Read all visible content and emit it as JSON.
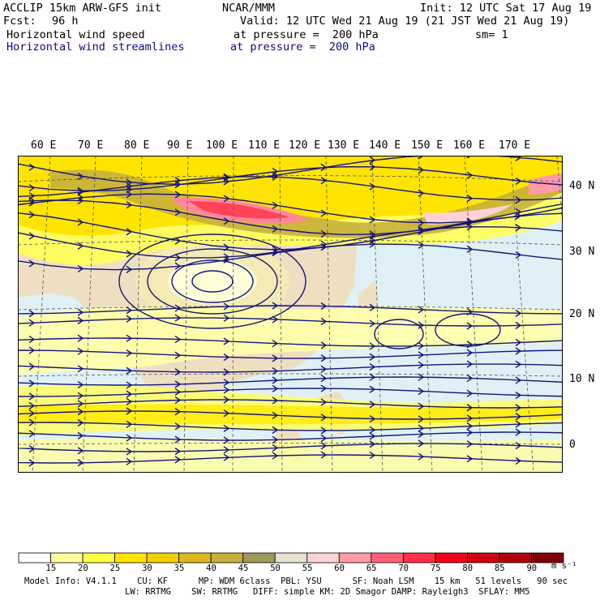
{
  "header": {
    "model": "ACCLIP 15km ARW-GFS init",
    "center": "NCAR/MMM",
    "init": "Init: 12 UTC Sat 17 Aug 19",
    "fcst_label": "Fcst:",
    "fcst_value": "96 h",
    "valid": "Valid: 12 UTC Wed 21 Aug 19 (21 JST Wed 21 Aug 19)",
    "field1_name": "Horizontal wind speed",
    "field1_level": "at pressure =  200 hPa",
    "field1_sm": "sm= 1",
    "field2_name": "Horizontal wind streamlines",
    "field2_level": "at pressure =  200 hPa"
  },
  "map": {
    "lon_labels": [
      "60 E",
      "70 E",
      "80 E",
      "90 E",
      "100 E",
      "110 E",
      "120 E",
      "130 E",
      "140 E",
      "150 E",
      "160 E",
      "170 E"
    ],
    "lat_labels": [
      "40 N",
      "30 N",
      "20 N",
      "10 N",
      "0"
    ],
    "streamline_color": "#14147a"
  },
  "colorbar": {
    "levels": [
      "15",
      "20",
      "25",
      "30",
      "35",
      "40",
      "45",
      "50",
      "55",
      "60",
      "65",
      "70",
      "75",
      "80",
      "85",
      "90"
    ],
    "colors": [
      "#ffffff",
      "#ffff9a",
      "#ffff44",
      "#ffe400",
      "#f2d000",
      "#dcb81e",
      "#c8b03c",
      "#9c9a5a",
      "#e6e2d2",
      "#ffd2d6",
      "#ff9aa6",
      "#ff6078",
      "#ff3048",
      "#f00018",
      "#d00010",
      "#b0000c",
      "#800008"
    ],
    "units": "m s⁻¹"
  },
  "footer": {
    "line1": "Model Info: V4.1.1    CU: KF      MP: WDM 6class  PBL: YSU      SF: Noah LSM    15 km   51 levels   90 sec",
    "line2": "LW: RRTMG    SW: RRTMG   DIFF: simple KM: 2D Smagor DAMP: Rayleigh3  SFLAY: MM5"
  }
}
